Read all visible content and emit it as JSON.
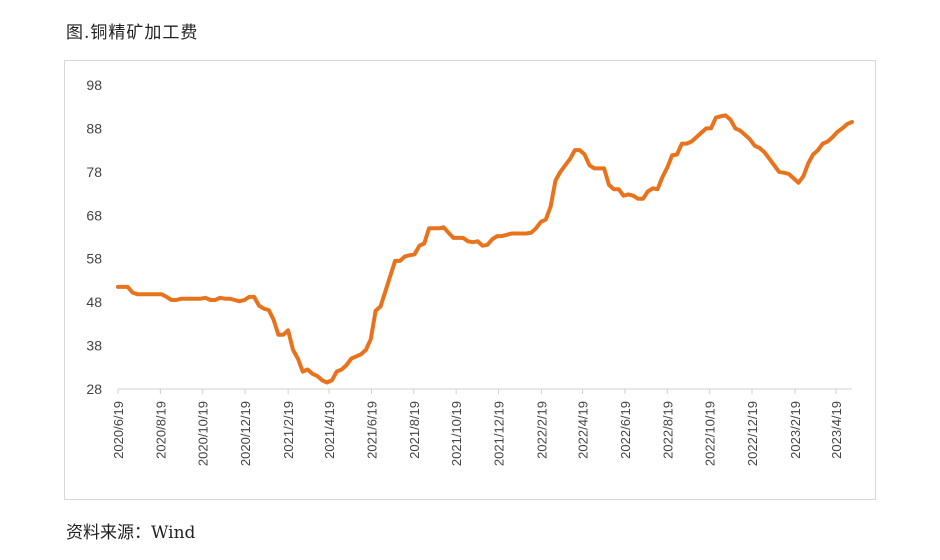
{
  "figure": {
    "title": "图.铜精矿加工费",
    "source": "资料来源：Wind"
  },
  "chart_data": {
    "type": "line",
    "title": "图.铜精矿加工费",
    "xlabel": "",
    "ylabel": "",
    "ylim": [
      28,
      98
    ],
    "yticks": [
      28,
      38,
      48,
      58,
      68,
      78,
      88,
      98
    ],
    "xticks": [
      "2020/6/19",
      "2020/8/19",
      "2020/10/19",
      "2020/12/19",
      "2021/2/19",
      "2021/4/19",
      "2021/6/19",
      "2021/8/19",
      "2021/10/19",
      "2021/12/19",
      "2022/2/19",
      "2022/4/19",
      "2022/6/19",
      "2022/8/19",
      "2022/10/19",
      "2022/12/19",
      "2023/2/19",
      "2023/4/19"
    ],
    "grid": false,
    "legend": "none",
    "series": [
      {
        "color": "#E8731C",
        "points": [
          [
            "2020/6/19",
            51.5
          ],
          [
            "2020/6/26",
            51.5
          ],
          [
            "2020/7/3",
            51.5
          ],
          [
            "2020/7/10",
            50.2
          ],
          [
            "2020/7/17",
            49.8
          ],
          [
            "2020/7/24",
            49.8
          ],
          [
            "2020/7/31",
            49.8
          ],
          [
            "2020/8/7",
            49.8
          ],
          [
            "2020/8/14",
            49.8
          ],
          [
            "2020/8/21",
            49.8
          ],
          [
            "2020/8/28",
            49.2
          ],
          [
            "2020/9/4",
            48.5
          ],
          [
            "2020/9/11",
            48.5
          ],
          [
            "2020/9/18",
            48.8
          ],
          [
            "2020/9/25",
            48.8
          ],
          [
            "2020/10/2",
            48.8
          ],
          [
            "2020/10/9",
            48.8
          ],
          [
            "2020/10/16",
            48.8
          ],
          [
            "2020/10/23",
            49.0
          ],
          [
            "2020/10/30",
            48.5
          ],
          [
            "2020/11/6",
            48.5
          ],
          [
            "2020/11/13",
            49.0
          ],
          [
            "2020/11/20",
            48.8
          ],
          [
            "2020/11/27",
            48.8
          ],
          [
            "2020/12/4",
            48.5
          ],
          [
            "2020/12/11",
            48.2
          ],
          [
            "2020/12/18",
            48.5
          ],
          [
            "2020/12/25",
            49.2
          ],
          [
            "2021/1/1",
            49.2
          ],
          [
            "2021/1/8",
            47.2
          ],
          [
            "2021/1/15",
            46.5
          ],
          [
            "2021/1/22",
            46.2
          ],
          [
            "2021/1/29",
            44.0
          ],
          [
            "2021/2/5",
            40.5
          ],
          [
            "2021/2/12",
            40.5
          ],
          [
            "2021/2/19",
            41.5
          ],
          [
            "2021/2/26",
            37.0
          ],
          [
            "2021/3/5",
            35.0
          ],
          [
            "2021/3/12",
            32.0
          ],
          [
            "2021/3/19",
            32.5
          ],
          [
            "2021/3/26",
            31.5
          ],
          [
            "2021/4/2",
            31.0
          ],
          [
            "2021/4/9",
            30.0
          ],
          [
            "2021/4/16",
            29.5
          ],
          [
            "2021/4/23",
            30.0
          ],
          [
            "2021/4/30",
            32.0
          ],
          [
            "2021/5/7",
            32.5
          ],
          [
            "2021/5/14",
            33.5
          ],
          [
            "2021/5/21",
            35.0
          ],
          [
            "2021/5/28",
            35.5
          ],
          [
            "2021/6/4",
            36.0
          ],
          [
            "2021/6/11",
            37.0
          ],
          [
            "2021/6/18",
            39.5
          ],
          [
            "2021/6/25",
            46.0
          ],
          [
            "2021/7/2",
            47.0
          ],
          [
            "2021/7/9",
            50.5
          ],
          [
            "2021/7/16",
            54.0
          ],
          [
            "2021/7/23",
            57.5
          ],
          [
            "2021/7/30",
            57.5
          ],
          [
            "2021/8/6",
            58.5
          ],
          [
            "2021/8/13",
            58.8
          ],
          [
            "2021/8/20",
            59.0
          ],
          [
            "2021/8/27",
            61.0
          ],
          [
            "2021/9/3",
            61.5
          ],
          [
            "2021/9/10",
            65.0
          ],
          [
            "2021/9/17",
            65.0
          ],
          [
            "2021/9/24",
            65.0
          ],
          [
            "2021/10/1",
            65.2
          ],
          [
            "2021/10/8",
            64.0
          ],
          [
            "2021/10/15",
            62.8
          ],
          [
            "2021/10/22",
            62.8
          ],
          [
            "2021/10/29",
            62.8
          ],
          [
            "2021/11/5",
            62.0
          ],
          [
            "2021/11/12",
            61.8
          ],
          [
            "2021/11/19",
            62.0
          ],
          [
            "2021/11/26",
            61.0
          ],
          [
            "2021/12/3",
            61.2
          ],
          [
            "2021/12/10",
            62.5
          ],
          [
            "2021/12/17",
            63.2
          ],
          [
            "2021/12/24",
            63.2
          ],
          [
            "2021/12/31",
            63.5
          ],
          [
            "2022/1/7",
            63.8
          ],
          [
            "2022/1/14",
            63.8
          ],
          [
            "2022/1/21",
            63.8
          ],
          [
            "2022/1/28",
            63.8
          ],
          [
            "2022/2/4",
            64.0
          ],
          [
            "2022/2/11",
            65.0
          ],
          [
            "2022/2/18",
            66.5
          ],
          [
            "2022/2/25",
            67.0
          ],
          [
            "2022/3/4",
            70.0
          ],
          [
            "2022/3/11",
            76.0
          ],
          [
            "2022/3/18",
            78.0
          ],
          [
            "2022/3/25",
            79.5
          ],
          [
            "2022/4/1",
            81.0
          ],
          [
            "2022/4/8",
            83.0
          ],
          [
            "2022/4/15",
            83.0
          ],
          [
            "2022/4/22",
            82.0
          ],
          [
            "2022/4/29",
            79.5
          ],
          [
            "2022/5/6",
            78.8
          ],
          [
            "2022/5/13",
            78.8
          ],
          [
            "2022/5/20",
            78.8
          ],
          [
            "2022/5/27",
            75.0
          ],
          [
            "2022/6/3",
            74.0
          ],
          [
            "2022/6/10",
            74.0
          ],
          [
            "2022/6/17",
            72.5
          ],
          [
            "2022/6/24",
            72.8
          ],
          [
            "2022/7/1",
            72.5
          ],
          [
            "2022/7/8",
            71.8
          ],
          [
            "2022/7/15",
            71.8
          ],
          [
            "2022/7/22",
            73.5
          ],
          [
            "2022/7/29",
            74.2
          ],
          [
            "2022/8/5",
            74.0
          ],
          [
            "2022/8/12",
            76.8
          ],
          [
            "2022/8/19",
            79.0
          ],
          [
            "2022/8/26",
            81.8
          ],
          [
            "2022/9/2",
            82.0
          ],
          [
            "2022/9/9",
            84.5
          ],
          [
            "2022/9/16",
            84.5
          ],
          [
            "2022/9/23",
            85.0
          ],
          [
            "2022/9/30",
            86.0
          ],
          [
            "2022/10/7",
            87.0
          ],
          [
            "2022/10/14",
            88.0
          ],
          [
            "2022/10/21",
            88.0
          ],
          [
            "2022/10/28",
            90.5
          ],
          [
            "2022/11/4",
            90.8
          ],
          [
            "2022/11/11",
            91.0
          ],
          [
            "2022/11/18",
            90.0
          ],
          [
            "2022/11/25",
            88.0
          ],
          [
            "2022/12/2",
            87.5
          ],
          [
            "2022/12/9",
            86.5
          ],
          [
            "2022/12/16",
            85.5
          ],
          [
            "2022/12/23",
            84.0
          ],
          [
            "2022/12/30",
            83.5
          ],
          [
            "2023/1/6",
            82.5
          ],
          [
            "2023/1/13",
            81.0
          ],
          [
            "2023/1/20",
            79.5
          ],
          [
            "2023/1/27",
            78.0
          ],
          [
            "2023/2/3",
            77.8
          ],
          [
            "2023/2/10",
            77.5
          ],
          [
            "2023/2/17",
            76.5
          ],
          [
            "2023/2/24",
            75.5
          ],
          [
            "2023/3/3",
            77.0
          ],
          [
            "2023/3/10",
            80.0
          ],
          [
            "2023/3/17",
            82.0
          ],
          [
            "2023/3/24",
            83.0
          ],
          [
            "2023/3/31",
            84.5
          ],
          [
            "2023/4/7",
            85.0
          ],
          [
            "2023/4/14",
            86.0
          ],
          [
            "2023/4/21",
            87.2
          ],
          [
            "2023/4/28",
            88.0
          ],
          [
            "2023/5/5",
            89.0
          ],
          [
            "2023/5/12",
            89.5
          ]
        ]
      }
    ]
  }
}
